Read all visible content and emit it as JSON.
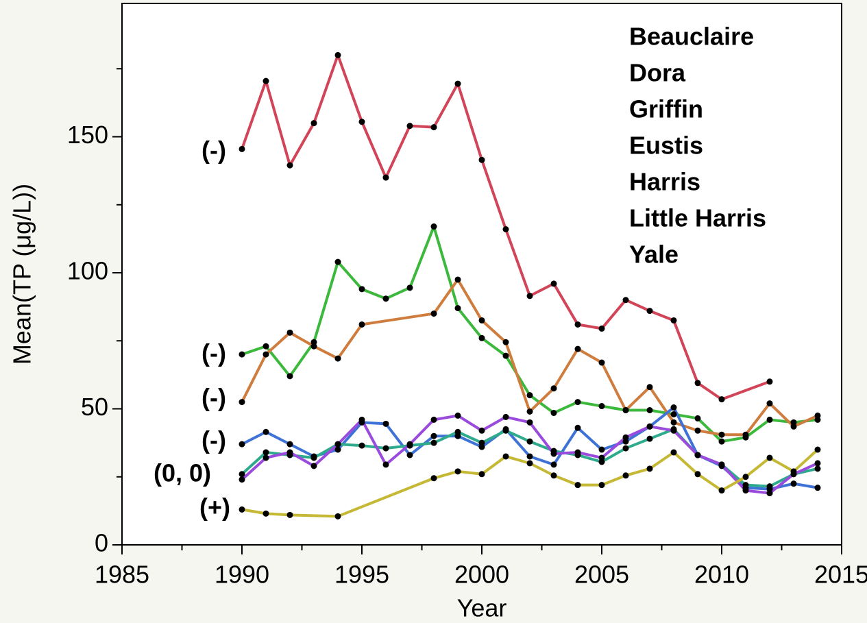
{
  "chart_data": {
    "type": "line",
    "xlabel": "Year",
    "ylabel": "Mean(TP (μg/L))",
    "xlim": [
      1985,
      2015
    ],
    "xticks": [
      1985,
      1990,
      1995,
      2000,
      2005,
      2010,
      2015
    ],
    "xminorticks": [
      1987.5,
      1992.5,
      1997.5,
      2002.5,
      2007.5,
      2012.5
    ],
    "ylim": [
      0,
      199
    ],
    "yticks": [
      0,
      50,
      100,
      150
    ],
    "yminorticks": [
      25,
      75,
      125,
      175
    ],
    "annotations": [
      "(-)",
      "(-)",
      "(-)",
      "(-)",
      "(0, 0)",
      "(+)"
    ],
    "series": [
      {
        "name": "Beauclaire",
        "color": "#d24458",
        "x": [
          1990,
          1991,
          1992,
          1993,
          1994,
          1995,
          1996,
          1997,
          1998,
          1999,
          2000,
          2001,
          2002,
          2003,
          2004,
          2005,
          2006,
          2007,
          2008,
          2009,
          2010,
          2012
        ],
        "values": [
          145.5,
          170.5,
          139.5,
          155,
          180,
          155.5,
          135,
          154,
          153.5,
          169.5,
          141.5,
          116,
          91.5,
          96,
          81,
          79.5,
          90,
          86,
          82.5,
          59.5,
          53.5,
          60
        ]
      },
      {
        "name": "Dora",
        "color": "#3cb93c",
        "x": [
          1990,
          1991,
          1992,
          1993,
          1994,
          1995,
          1996,
          1997,
          1998,
          1999,
          2000,
          2001,
          2002,
          2003,
          2004,
          2005,
          2006,
          2007,
          2008,
          2009,
          2010,
          2011,
          2012,
          2013,
          2014
        ],
        "values": [
          70,
          73,
          62,
          74.5,
          104,
          94,
          90.5,
          94.5,
          117,
          87,
          76,
          69.5,
          55,
          48.5,
          52.5,
          51,
          49.5,
          49.5,
          48,
          46.5,
          38,
          39.5,
          46,
          45,
          46
        ]
      },
      {
        "name": "Griffin",
        "color": "#cf7d3e",
        "x": [
          1990,
          1991,
          1992,
          1993,
          1994,
          1995,
          1998,
          1999,
          2000,
          2001,
          2002,
          2003,
          2004,
          2005,
          2006,
          2007,
          2008,
          2009,
          2010,
          2011,
          2012,
          2013,
          2014
        ],
        "values": [
          52.5,
          70,
          78,
          73,
          68.5,
          81,
          85,
          97.5,
          82.5,
          74.5,
          49,
          57.5,
          72,
          67,
          49.5,
          58,
          45,
          42,
          40.5,
          40.5,
          52,
          43.5,
          47.5
        ]
      },
      {
        "name": "Eustis",
        "color": "#3f72d6",
        "x": [
          1990,
          1991,
          1992,
          1993,
          1994,
          1995,
          1996,
          1997,
          1998,
          1999,
          2000,
          2001,
          2002,
          2003,
          2004,
          2005,
          2006,
          2007,
          2008,
          2009,
          2010,
          2011,
          2012,
          2013,
          2014
        ],
        "values": [
          37,
          41.5,
          37,
          32.5,
          35,
          45,
          44.5,
          33,
          40,
          40,
          36,
          42.5,
          32.5,
          29.5,
          43,
          35,
          38,
          43.5,
          50.5,
          33,
          29,
          21,
          20.5,
          22.5,
          21
        ]
      },
      {
        "name": "Harris",
        "color": "#2eaa8c",
        "x": [
          1990,
          1991,
          1992,
          1993,
          1994,
          1995,
          1996,
          1997,
          1998,
          1999,
          2000,
          2001,
          2002,
          2003,
          2004,
          2005,
          2006,
          2007,
          2008,
          2009,
          2010,
          2011,
          2012,
          2013,
          2014
        ],
        "values": [
          26,
          34,
          33,
          32,
          37,
          36.5,
          35.5,
          36.5,
          37.5,
          41.5,
          37.5,
          42,
          38,
          34.5,
          33,
          30.5,
          35.5,
          39,
          42.5,
          33,
          29.5,
          22,
          21.5,
          26,
          28
        ]
      },
      {
        "name": "Little Harris",
        "color": "#9b4ade",
        "x": [
          1990,
          1991,
          1992,
          1993,
          1994,
          1995,
          1996,
          1997,
          1998,
          1999,
          2000,
          2001,
          2002,
          2003,
          2004,
          2005,
          2006,
          2007,
          2008,
          2009,
          2010,
          2011,
          2012,
          2013,
          2014
        ],
        "values": [
          24,
          32,
          34,
          29,
          37,
          46,
          29.5,
          37,
          46,
          47.5,
          42,
          47,
          45,
          33.5,
          34,
          32,
          39.5,
          43.5,
          42,
          33,
          29.5,
          20,
          19,
          26,
          30
        ]
      },
      {
        "name": "Yale",
        "color": "#c4b834",
        "x": [
          1990,
          1991,
          1992,
          1994,
          1998,
          1999,
          2000,
          2001,
          2002,
          2003,
          2004,
          2005,
          2006,
          2007,
          2008,
          2009,
          2010,
          2011,
          2012,
          2013,
          2014
        ],
        "values": [
          13,
          11.5,
          11,
          10.5,
          24.5,
          27,
          26,
          32.5,
          30,
          25.5,
          22,
          22,
          25.5,
          28,
          34,
          26,
          20,
          25,
          32,
          27,
          35
        ]
      }
    ]
  }
}
